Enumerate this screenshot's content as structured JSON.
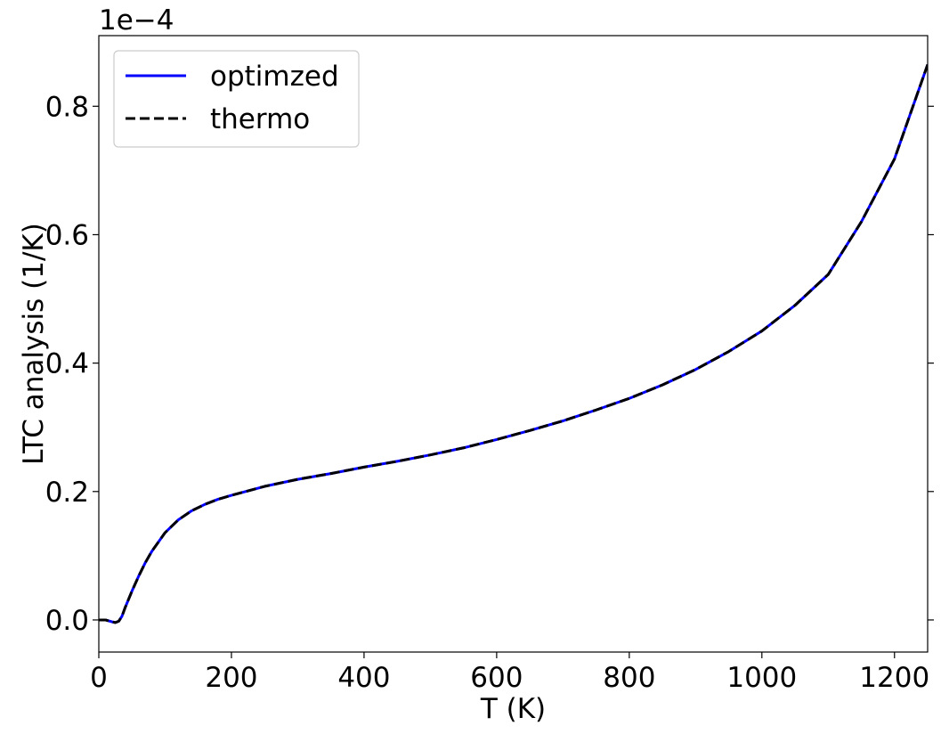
{
  "chart_data": {
    "type": "line",
    "title": "",
    "xlabel": "T (K)",
    "ylabel": "LTC analysis (1/K)",
    "offset_text": "1e−4",
    "xlim": [
      0,
      1250
    ],
    "ylim": [
      -0.05,
      0.91
    ],
    "y_scale_note": "values shown in units of 1e-4 1/K",
    "xticks": [
      0,
      200,
      400,
      600,
      800,
      1000,
      1200
    ],
    "xtick_labels": [
      "0",
      "200",
      "400",
      "600",
      "800",
      "1000",
      "1200"
    ],
    "yticks": [
      0.0,
      0.2,
      0.4,
      0.6,
      0.8
    ],
    "ytick_labels": [
      "0.0",
      "0.2",
      "0.4",
      "0.6",
      "0.8"
    ],
    "grid": false,
    "legend_position": "upper-left",
    "series": [
      {
        "name": "optimzed",
        "color": "#0000ff",
        "style": "solid",
        "x": [
          0,
          10,
          20,
          25,
          30,
          35,
          40,
          50,
          60,
          70,
          80,
          100,
          120,
          140,
          160,
          180,
          200,
          250,
          300,
          350,
          400,
          450,
          500,
          550,
          600,
          650,
          700,
          750,
          800,
          850,
          900,
          950,
          1000,
          1050,
          1100,
          1150,
          1200,
          1250
        ],
        "y": [
          0.0,
          0.0,
          -0.003,
          -0.004,
          -0.002,
          0.006,
          0.02,
          0.045,
          0.068,
          0.089,
          0.107,
          0.136,
          0.156,
          0.17,
          0.18,
          0.188,
          0.194,
          0.208,
          0.219,
          0.228,
          0.238,
          0.247,
          0.257,
          0.268,
          0.281,
          0.295,
          0.31,
          0.327,
          0.345,
          0.366,
          0.39,
          0.418,
          0.45,
          0.49,
          0.538,
          0.62,
          0.718,
          0.865
        ]
      },
      {
        "name": "thermo",
        "color": "#000000",
        "style": "dashed",
        "x": [
          0,
          10,
          20,
          25,
          30,
          35,
          40,
          50,
          60,
          70,
          80,
          100,
          120,
          140,
          160,
          180,
          200,
          250,
          300,
          350,
          400,
          450,
          500,
          550,
          600,
          650,
          700,
          750,
          800,
          850,
          900,
          950,
          1000,
          1050,
          1100,
          1150,
          1200,
          1250
        ],
        "y": [
          0.0,
          0.0,
          -0.003,
          -0.004,
          -0.002,
          0.006,
          0.02,
          0.045,
          0.068,
          0.089,
          0.107,
          0.136,
          0.156,
          0.17,
          0.18,
          0.188,
          0.194,
          0.208,
          0.219,
          0.228,
          0.238,
          0.247,
          0.257,
          0.268,
          0.281,
          0.295,
          0.31,
          0.327,
          0.345,
          0.366,
          0.39,
          0.418,
          0.45,
          0.49,
          0.538,
          0.62,
          0.718,
          0.865
        ]
      }
    ]
  }
}
